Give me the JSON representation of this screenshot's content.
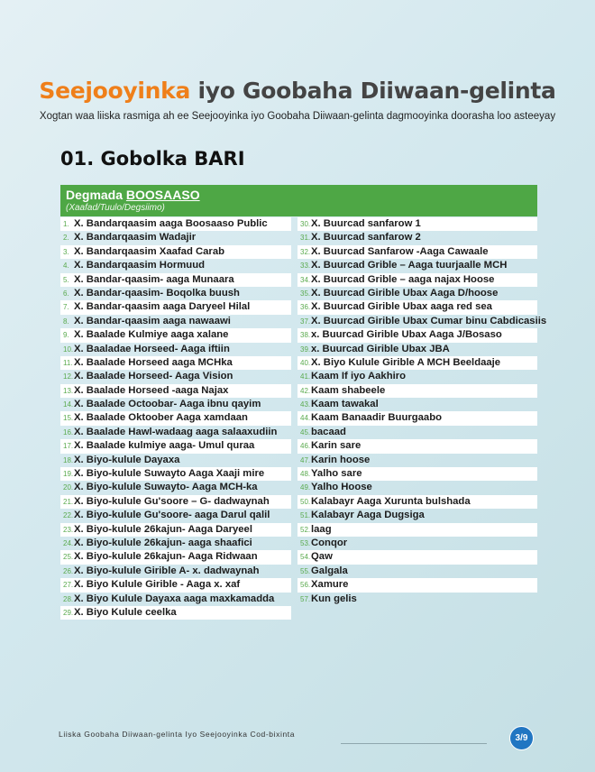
{
  "title": {
    "accent": "Seejooyinka",
    "rest": " iyo Goobaha Diiwaan-gelinta"
  },
  "subtitle": "Xogtan waa liiska rasmiga ah ee Seejooyinka iyo Goobaha Diiwaan-gelinta dagmooyinka doorasha loo asteeyay",
  "region": "01. Gobolka BARI",
  "table_header": {
    "prefix": "Degmada ",
    "district": "BOOSAASO",
    "sub": "(Xaafad/Tuulo/Degsiimo)"
  },
  "left_items": [
    "X. Bandarqaasim aaga Boosaaso Public",
    "X. Bandarqaasim Wadajir",
    "X. Bandarqaasim Xaafad Carab",
    "X. Bandarqaasim Hormuud",
    "X. Bandar-qaasim- aaga Munaara",
    "X. Bandar-qaasim- Boqolka buush",
    "X. Bandar-qaasim aaga Daryeel Hilal",
    "X. Bandar-qaasim aaga nawaawi",
    "X. Baalade Kulmiye aaga xalane",
    "X. Baaladae Horseed- Aaga iftiin",
    "X. Baalade Horseed  aaga MCHka",
    "X. Baalade Horseed- Aaga Vision",
    "X. Baalade Horseed -aaga Najax",
    "X.  Baalade Octoobar- Aaga ibnu qayim",
    "X. Baalade Oktoober Aaga xamdaan",
    "X. Baalade Hawl-wadaag aaga salaaxudiin",
    "X. Baalade kulmiye aaga- Umul quraa",
    "X. Biyo-kulule Dayaxa",
    "X. Biyo-kulule Suwayto Aaga Xaaji mire",
    "X. Biyo-kulule Suwayto-  Aaga MCH-ka",
    "X. Biyo-kulule Gu'soore – G- dadwaynah",
    "X. Biyo-kulule Gu'soore- aaga Darul qalil",
    "X. Biyo-kulule 26kajun- Aaga Daryeel",
    "X. Biyo-kulule 26kajun- aaga shaafici",
    "X. Biyo-kulule 26kajun- Aaga Ridwaan",
    "X. Biyo-kulule Giribl​e A- x. dadwaynah",
    "X. Biyo Kulule Girible  - Aaga x. xaf",
    "X. Biyo Kulule Dayaxa aaga maxkamadda",
    "X. Biyo Kulule  ceelka"
  ],
  "right_items": [
    "X. Buurcad sanfarow 1",
    "X. Buurcad sanfarow 2",
    "X. Buurcad Sanfarow -Aaga Cawaale",
    "X. Buurcad Grible – Aaga tuurjaalle MCH",
    "X.  Buurcad Grible – aaga najax Hoose",
    "X.  Buurcad  Girible Ubax Aaga D/hoose",
    "X. Buurcad  Girible Ubax aaga red sea",
    "X. Buurcad  Girible Ubax Cumar binu Cabdicasiis",
    "x. Buurcad  Girible Ubax Aaga J/Bosaso",
    "x. Buurcad  Girible Ubax JBA",
    "X. Biyo Kulule Girible A MCH Beeldaaje",
    "Kaam If iyo Aakhiro",
    "Kaam shabeele",
    "Kaam tawakal",
    "Kaam Banaadir Buurgaabo",
    "bacaad",
    "Karin sare",
    "Karin hoose",
    "Yalho sare",
    "Yalho Hoose",
    "Kalabayr Aaga Xurunta bulshada",
    "Kalabayr Aaga Dugsiga",
    "laag",
    "Conqor",
    "Qaw",
    "Galgala",
    "Xamure",
    "Kun gelis"
  ],
  "left_start": 1,
  "right_start": 30,
  "footer": {
    "text": "Liiska Goobaha Diiwaan-gelinta Iyo Seejooyinka Cod-bixinta",
    "page": "3/9"
  },
  "colors": {
    "accent": "#ef7f1a",
    "header_green": "#4ea745",
    "badge_blue": "#2176c2"
  }
}
